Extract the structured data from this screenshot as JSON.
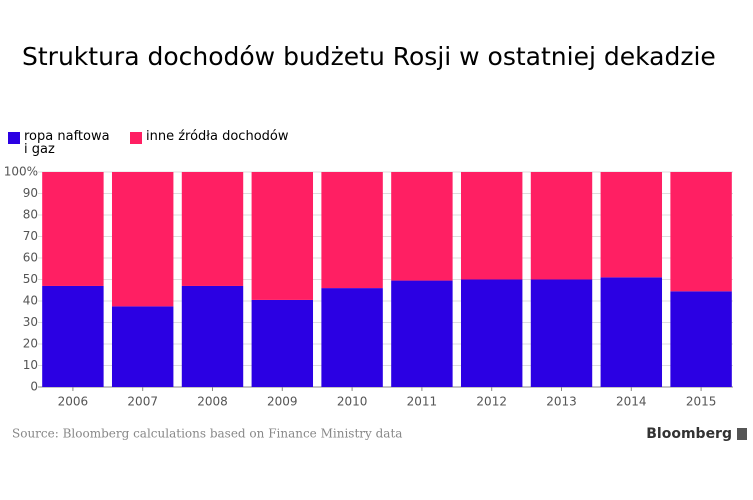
{
  "chart_data": {
    "type": "stacked_bar",
    "title": "Struktura dochodów budżetu Rosji w ostatniej dekadzie",
    "categories": [
      "2006",
      "2007",
      "2008",
      "2009",
      "2010",
      "2011",
      "2012",
      "2013",
      "2014",
      "2015"
    ],
    "series": [
      {
        "name": "ropa naftowa i gaz",
        "color": "#2b00e3",
        "values": [
          47,
          37.5,
          47,
          40.5,
          46,
          49.5,
          50,
          50,
          51,
          44.5
        ]
      },
      {
        "name": "inne źródła dochodów",
        "color": "#ff1f63",
        "values": [
          53,
          62.5,
          53,
          59.5,
          54,
          50.5,
          50,
          50,
          49,
          55.5
        ]
      }
    ],
    "ylim": [
      0,
      100
    ],
    "yticks": [
      0,
      10,
      20,
      30,
      40,
      50,
      60,
      70,
      80,
      90,
      {
        "value": 100,
        "label": "100%"
      }
    ],
    "grid": true,
    "source": "Source: Bloomberg calculations based on Finance Ministry data",
    "logo": "Bloomberg"
  }
}
